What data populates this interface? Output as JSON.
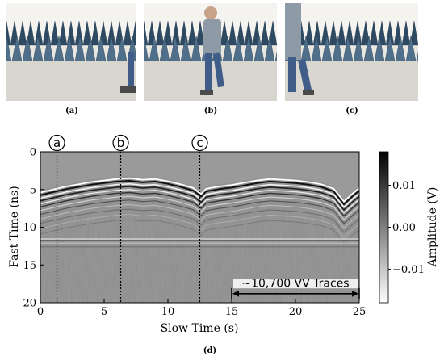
{
  "photos": [
    {
      "label": "(a)"
    },
    {
      "label": "(b)"
    },
    {
      "label": "(c)"
    }
  ],
  "panel_d_label": "(d)",
  "colors": {
    "absorber_blue": "#4f6f8a",
    "absorber_dark": "#2e4a63",
    "floor": "#d9d6d0",
    "person_shirt": "#8e9aa6",
    "person_pants": "#3f5d88"
  },
  "chart_data": {
    "type": "heatmap",
    "xlabel": "Slow Time (s)",
    "ylabel": "Fast Time (ns)",
    "colorbar_label": "Amplitude (V)",
    "xlim": [
      0,
      25
    ],
    "ylim": [
      20,
      0
    ],
    "x_ticks": [
      0,
      5,
      10,
      15,
      20,
      25
    ],
    "x_tick_labels": [
      "0",
      "5",
      "10",
      "15",
      "20",
      "25"
    ],
    "y_ticks": [
      0,
      5,
      10,
      15,
      20
    ],
    "y_tick_labels": [
      "0",
      "5",
      "10",
      "15",
      "20"
    ],
    "colorbar_ticks": [
      0.01,
      0.0,
      -0.01
    ],
    "colorbar_tick_labels": [
      "0.01",
      "0.00",
      "−0.01"
    ],
    "colorbar_range": [
      -0.018,
      0.018
    ],
    "markers": [
      {
        "label": "a",
        "x": 1.3
      },
      {
        "label": "b",
        "x": 6.3
      },
      {
        "label": "c",
        "x": 12.5
      }
    ],
    "annotation": {
      "text": "~10,700 VV Traces",
      "x_start": 15,
      "x_end": 25
    },
    "surface_reflection_profile": [
      {
        "x": 0,
        "y": 5.4
      },
      {
        "x": 1,
        "y": 5.0
      },
      {
        "x": 2,
        "y": 4.6
      },
      {
        "x": 3,
        "y": 4.3
      },
      {
        "x": 4,
        "y": 4.0
      },
      {
        "x": 5,
        "y": 3.8
      },
      {
        "x": 6,
        "y": 3.6
      },
      {
        "x": 7,
        "y": 3.5
      },
      {
        "x": 8,
        "y": 3.7
      },
      {
        "x": 9,
        "y": 3.6
      },
      {
        "x": 10,
        "y": 3.9
      },
      {
        "x": 11,
        "y": 4.3
      },
      {
        "x": 12,
        "y": 4.8
      },
      {
        "x": 12.6,
        "y": 5.6
      },
      {
        "x": 13,
        "y": 4.9
      },
      {
        "x": 14,
        "y": 4.6
      },
      {
        "x": 15,
        "y": 4.4
      },
      {
        "x": 16,
        "y": 4.1
      },
      {
        "x": 17,
        "y": 3.8
      },
      {
        "x": 18,
        "y": 3.6
      },
      {
        "x": 19,
        "y": 3.7
      },
      {
        "x": 20,
        "y": 3.8
      },
      {
        "x": 21,
        "y": 4.0
      },
      {
        "x": 22,
        "y": 4.3
      },
      {
        "x": 23,
        "y": 4.9
      },
      {
        "x": 23.8,
        "y": 6.6
      },
      {
        "x": 24.5,
        "y": 5.5
      },
      {
        "x": 25,
        "y": 4.8
      }
    ],
    "deep_reflection_ns": 11.8
  }
}
